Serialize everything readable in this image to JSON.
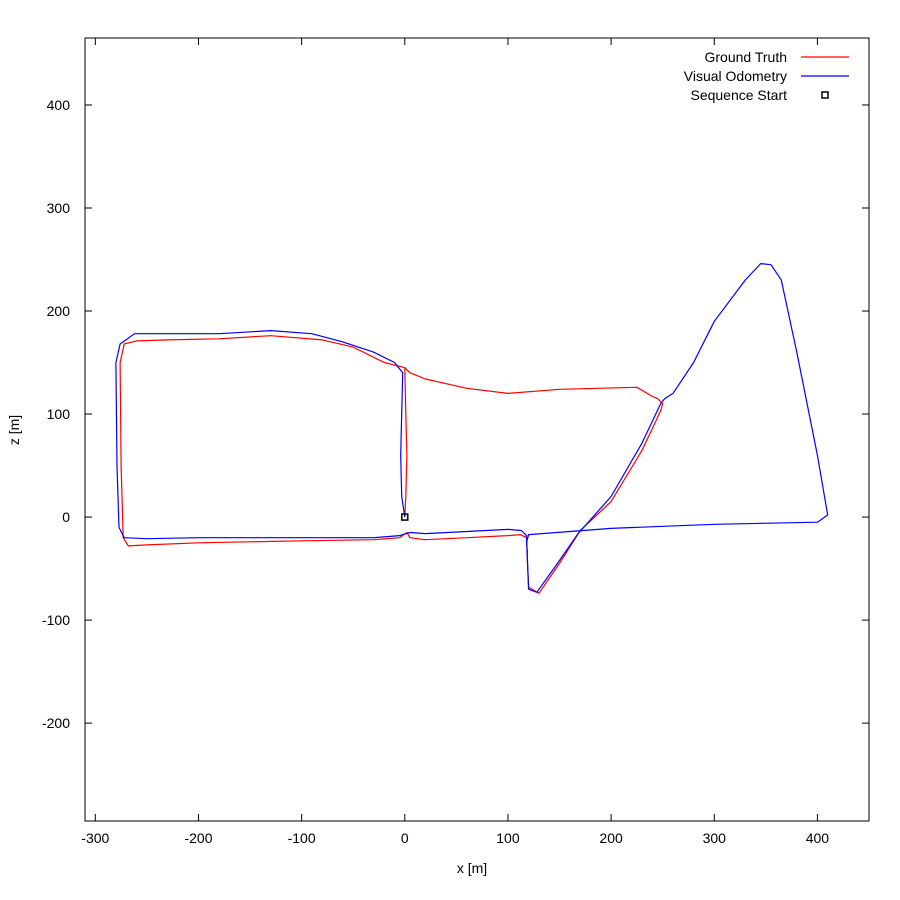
{
  "chart_data": {
    "type": "line",
    "title": "",
    "xlabel": "x [m]",
    "ylabel": "z [m]",
    "xlim": [
      -310,
      450
    ],
    "ylim": [
      -295,
      465
    ],
    "x_ticks": [
      -300,
      -200,
      -100,
      0,
      100,
      200,
      300,
      400
    ],
    "y_ticks": [
      -200,
      -100,
      0,
      100,
      200,
      300,
      400
    ],
    "grid": false,
    "legend_position": "top-right",
    "series": [
      {
        "name": "Ground Truth",
        "color": "#ff0000",
        "style": "line",
        "points": [
          [
            0,
            0
          ],
          [
            1,
            20
          ],
          [
            2,
            60
          ],
          [
            1,
            100
          ],
          [
            0,
            145
          ],
          [
            -20,
            150
          ],
          [
            -50,
            165
          ],
          [
            -80,
            172
          ],
          [
            -130,
            176
          ],
          [
            -180,
            173
          ],
          [
            -230,
            172
          ],
          [
            -260,
            171
          ],
          [
            -272,
            168
          ],
          [
            -276,
            150
          ],
          [
            -275,
            50
          ],
          [
            -273,
            -20
          ],
          [
            -268,
            -28
          ],
          [
            -250,
            -27
          ],
          [
            -200,
            -25
          ],
          [
            -100,
            -23
          ],
          [
            -30,
            -22
          ],
          [
            -5,
            -20
          ],
          [
            2,
            -15
          ],
          [
            5,
            -20
          ],
          [
            20,
            -22
          ],
          [
            60,
            -20
          ],
          [
            100,
            -18
          ],
          [
            112,
            -17
          ],
          [
            118,
            -20
          ],
          [
            119,
            -45
          ],
          [
            120,
            -68
          ],
          [
            130,
            -74
          ],
          [
            150,
            -45
          ],
          [
            170,
            -13
          ],
          [
            200,
            15
          ],
          [
            230,
            65
          ],
          [
            248,
            103
          ],
          [
            250,
            110
          ],
          [
            245,
            115
          ],
          [
            240,
            117
          ],
          [
            225,
            126
          ],
          [
            150,
            124
          ],
          [
            100,
            120
          ],
          [
            60,
            125
          ],
          [
            20,
            134
          ],
          [
            5,
            140
          ],
          [
            0,
            145
          ]
        ]
      },
      {
        "name": "Visual Odometry",
        "color": "#0000ff",
        "style": "line",
        "points": [
          [
            0,
            0
          ],
          [
            -3,
            20
          ],
          [
            -4,
            60
          ],
          [
            -3,
            100
          ],
          [
            -2,
            140
          ],
          [
            -10,
            150
          ],
          [
            -30,
            160
          ],
          [
            -60,
            170
          ],
          [
            -90,
            178
          ],
          [
            -130,
            181
          ],
          [
            -180,
            178
          ],
          [
            -240,
            178
          ],
          [
            -262,
            178
          ],
          [
            -276,
            168
          ],
          [
            -280,
            150
          ],
          [
            -279,
            50
          ],
          [
            -277,
            -10
          ],
          [
            -272,
            -20
          ],
          [
            -250,
            -21
          ],
          [
            -200,
            -20
          ],
          [
            -100,
            -20
          ],
          [
            -30,
            -20
          ],
          [
            -5,
            -18
          ],
          [
            5,
            -15
          ],
          [
            20,
            -16
          ],
          [
            60,
            -14
          ],
          [
            100,
            -12
          ],
          [
            113,
            -13
          ],
          [
            118,
            -18
          ],
          [
            120,
            -70
          ],
          [
            128,
            -73
          ],
          [
            148,
            -45
          ],
          [
            168,
            -16
          ],
          [
            200,
            20
          ],
          [
            230,
            72
          ],
          [
            248,
            110
          ],
          [
            252,
            115
          ],
          [
            260,
            120
          ],
          [
            280,
            150
          ],
          [
            300,
            190
          ],
          [
            330,
            230
          ],
          [
            345,
            246
          ],
          [
            355,
            245
          ],
          [
            365,
            230
          ],
          [
            380,
            160
          ],
          [
            400,
            60
          ],
          [
            410,
            2
          ],
          [
            400,
            -5
          ],
          [
            300,
            -7
          ],
          [
            200,
            -11
          ],
          [
            120,
            -17
          ],
          [
            118,
            -25
          ],
          [
            119,
            -35
          ]
        ]
      },
      {
        "name": "Sequence Start",
        "color": "#000000",
        "style": "square-marker",
        "points": [
          [
            0,
            0
          ]
        ]
      }
    ]
  }
}
